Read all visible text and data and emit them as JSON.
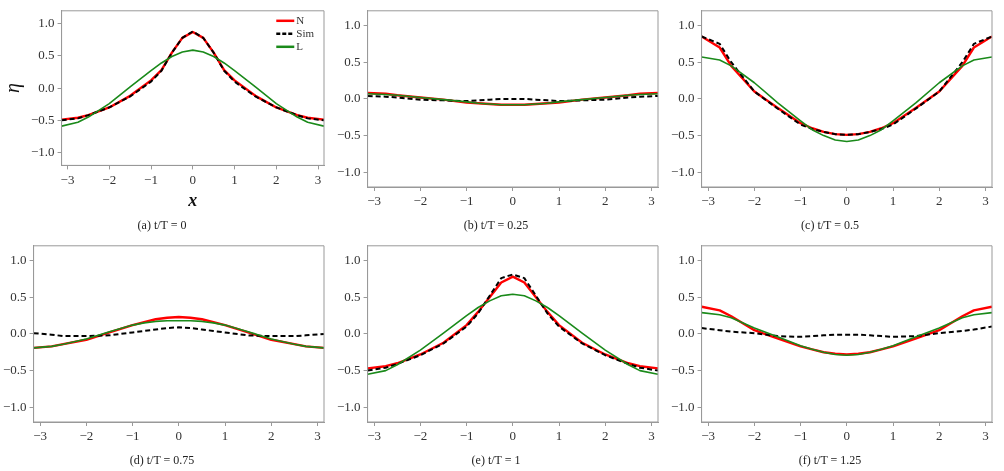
{
  "chart_data": [
    {
      "type": "line",
      "title": "(a) t/T = 0",
      "xlabel": "x",
      "ylabel": "η",
      "legend": "top right",
      "marker": "none",
      "grid": false,
      "xlim": [
        -3.1416,
        3.1416
      ],
      "xticks": [
        -3,
        -2,
        -1,
        0,
        1,
        2,
        3
      ],
      "ylim": [
        -1.2,
        1.2
      ],
      "yticks": [
        {
          "value": -1,
          "label": "−1.0"
        },
        {
          "value": -0.5,
          "label": "−0.5"
        },
        {
          "value": 0,
          "label": "0.0"
        },
        {
          "value": 0.5,
          "label": "0.5"
        },
        {
          "value": 1,
          "label": "1.0"
        }
      ],
      "x": [
        -3.14,
        -2.75,
        -2.5,
        -2,
        -1.5,
        -1,
        -0.75,
        -0.5,
        -0.25,
        0,
        0.25,
        0.5,
        0.75,
        1,
        1.5,
        2,
        2.5,
        2.75,
        3.14
      ],
      "series": [
        {
          "name": "N",
          "color": "#ff0000",
          "line_style": "solid",
          "values": [
            -0.49,
            -0.46,
            -0.42,
            -0.3,
            -0.12,
            0.12,
            0.28,
            0.55,
            0.78,
            0.87,
            0.78,
            0.55,
            0.28,
            0.12,
            -0.12,
            -0.3,
            -0.42,
            -0.46,
            -0.49
          ]
        },
        {
          "name": "Sim",
          "color": "#000000",
          "line_style": "dashed",
          "values": [
            -0.5,
            -0.47,
            -0.42,
            -0.3,
            -0.13,
            0.1,
            0.27,
            0.55,
            0.78,
            0.88,
            0.78,
            0.55,
            0.27,
            0.1,
            -0.13,
            -0.3,
            -0.42,
            -0.47,
            -0.5
          ]
        },
        {
          "name": "L",
          "color": "#1a8a1a",
          "line_style": "solid",
          "values": [
            -0.59,
            -0.53,
            -0.45,
            -0.24,
            0.02,
            0.27,
            0.39,
            0.49,
            0.56,
            0.59,
            0.56,
            0.49,
            0.39,
            0.27,
            0.02,
            -0.24,
            -0.45,
            -0.53,
            -0.59
          ]
        }
      ]
    },
    {
      "type": "line",
      "title": "(b) t/T = 0.25",
      "marker": "none",
      "grid": false,
      "xlim": [
        -3.1416,
        3.1416
      ],
      "xticks": [
        -3,
        -2,
        -1,
        0,
        1,
        2,
        3
      ],
      "ylim": [
        -1.2,
        1.2
      ],
      "yticks": [
        {
          "value": -1,
          "label": "−1.0"
        },
        {
          "value": -0.5,
          "label": "−0.5"
        },
        {
          "value": 0,
          "label": "0.0"
        },
        {
          "value": 0.5,
          "label": "0.5"
        },
        {
          "value": 1,
          "label": "1.0"
        }
      ],
      "x": [
        -3.14,
        -2.75,
        -2.5,
        -2,
        -1.5,
        -1,
        -0.75,
        -0.5,
        -0.25,
        0,
        0.25,
        0.5,
        0.75,
        1,
        1.5,
        2,
        2.5,
        2.75,
        3.14
      ],
      "series": [
        {
          "color": "#ff0000",
          "line_style": "solid",
          "values": [
            0.08,
            0.07,
            0.05,
            0.02,
            -0.01,
            -0.05,
            -0.06,
            -0.07,
            -0.08,
            -0.08,
            -0.08,
            -0.07,
            -0.06,
            -0.05,
            -0.01,
            0.02,
            0.05,
            0.07,
            0.08
          ]
        },
        {
          "color": "#000000",
          "line_style": "dashed",
          "values": [
            0.04,
            0.03,
            0.02,
            -0.01,
            -0.02,
            -0.03,
            -0.02,
            -0.01,
            0,
            0,
            0,
            -0.01,
            -0.02,
            -0.03,
            -0.02,
            -0.01,
            0.02,
            0.03,
            0.04
          ]
        },
        {
          "color": "#1a8a1a",
          "line_style": "solid",
          "values": [
            0.07,
            0.06,
            0.05,
            0.02,
            -0.01,
            -0.04,
            -0.06,
            -0.07,
            -0.08,
            -0.08,
            -0.08,
            -0.07,
            -0.06,
            -0.04,
            -0.01,
            0.02,
            0.05,
            0.06,
            0.07
          ]
        }
      ]
    },
    {
      "type": "line",
      "title": "(c) t/T = 0.5",
      "marker": "none",
      "grid": false,
      "xlim": [
        -3.1416,
        3.1416
      ],
      "xticks": [
        -3,
        -2,
        -1,
        0,
        1,
        2,
        3
      ],
      "ylim": [
        -1.2,
        1.2
      ],
      "yticks": [
        {
          "value": -1,
          "label": "−1.0"
        },
        {
          "value": -0.5,
          "label": "−0.5"
        },
        {
          "value": 0,
          "label": "0.0"
        },
        {
          "value": 0.5,
          "label": "0.5"
        },
        {
          "value": 1,
          "label": "1.0"
        }
      ],
      "x": [
        -3.14,
        -2.75,
        -2.5,
        -2,
        -1.5,
        -1,
        -0.75,
        -0.5,
        -0.25,
        0,
        0.25,
        0.5,
        0.75,
        1,
        1.5,
        2,
        2.5,
        2.75,
        3.14
      ],
      "series": [
        {
          "color": "#ff0000",
          "line_style": "solid",
          "values": [
            0.85,
            0.7,
            0.45,
            0.1,
            -0.12,
            -0.33,
            -0.4,
            -0.45,
            -0.48,
            -0.49,
            -0.48,
            -0.45,
            -0.4,
            -0.33,
            -0.12,
            0.1,
            0.45,
            0.7,
            0.85
          ]
        },
        {
          "color": "#000000",
          "line_style": "dashed",
          "values": [
            0.85,
            0.75,
            0.5,
            0.1,
            -0.13,
            -0.35,
            -0.41,
            -0.45,
            -0.48,
            -0.49,
            -0.48,
            -0.45,
            -0.41,
            -0.35,
            -0.13,
            0.1,
            0.5,
            0.75,
            0.85
          ]
        },
        {
          "color": "#1a8a1a",
          "line_style": "solid",
          "values": [
            0.57,
            0.53,
            0.45,
            0.22,
            -0.05,
            -0.3,
            -0.42,
            -0.5,
            -0.56,
            -0.58,
            -0.56,
            -0.5,
            -0.42,
            -0.3,
            -0.05,
            0.22,
            0.45,
            0.53,
            0.57
          ]
        }
      ]
    },
    {
      "type": "line",
      "title": "(d) t/T = 0.75",
      "marker": "none",
      "grid": false,
      "xlim": [
        -3.1416,
        3.1416
      ],
      "xticks": [
        -3,
        -2,
        -1,
        0,
        1,
        2,
        3
      ],
      "ylim": [
        -1.2,
        1.2
      ],
      "yticks": [
        {
          "value": -1,
          "label": "−1.0"
        },
        {
          "value": -0.5,
          "label": "−0.5"
        },
        {
          "value": 0,
          "label": "0.0"
        },
        {
          "value": 0.5,
          "label": "0.5"
        },
        {
          "value": 1,
          "label": "1.0"
        }
      ],
      "x": [
        -3.14,
        -2.75,
        -2.5,
        -2,
        -1.5,
        -1,
        -0.75,
        -0.5,
        -0.25,
        0,
        0.25,
        0.5,
        0.75,
        1,
        1.5,
        2,
        2.5,
        2.75,
        3.14
      ],
      "series": [
        {
          "color": "#ff0000",
          "line_style": "solid",
          "values": [
            -0.19,
            -0.17,
            -0.14,
            -0.08,
            0.02,
            0.12,
            0.16,
            0.2,
            0.22,
            0.23,
            0.22,
            0.2,
            0.16,
            0.12,
            0.02,
            -0.08,
            -0.14,
            -0.17,
            -0.19
          ]
        },
        {
          "color": "#000000",
          "line_style": "dashed",
          "values": [
            0.01,
            -0.01,
            -0.03,
            -0.03,
            -0.02,
            0.02,
            0.04,
            0.06,
            0.08,
            0.09,
            0.08,
            0.06,
            0.04,
            0.02,
            -0.02,
            -0.03,
            -0.03,
            -0.02,
            0
          ]
        },
        {
          "color": "#1a8a1a",
          "line_style": "solid",
          "values": [
            -0.19,
            -0.17,
            -0.14,
            -0.07,
            0.03,
            0.12,
            0.15,
            0.17,
            0.18,
            0.18,
            0.18,
            0.17,
            0.15,
            0.12,
            0.03,
            -0.07,
            -0.14,
            -0.17,
            -0.19
          ]
        }
      ]
    },
    {
      "type": "line",
      "title": "(e) t/T = 1",
      "marker": "none",
      "grid": false,
      "xlim": [
        -3.1416,
        3.1416
      ],
      "xticks": [
        -3,
        -2,
        -1,
        0,
        1,
        2,
        3
      ],
      "ylim": [
        -1.2,
        1.2
      ],
      "yticks": [
        {
          "value": -1,
          "label": "−1.0"
        },
        {
          "value": -0.5,
          "label": "−0.5"
        },
        {
          "value": 0,
          "label": "0.0"
        },
        {
          "value": 0.5,
          "label": "0.5"
        },
        {
          "value": 1,
          "label": "1.0"
        }
      ],
      "x": [
        -3.14,
        -2.75,
        -2.5,
        -2,
        -1.5,
        -1,
        -0.75,
        -0.5,
        -0.25,
        0,
        0.25,
        0.5,
        0.75,
        1,
        1.5,
        2,
        2.5,
        2.75,
        3.14
      ],
      "series": [
        {
          "color": "#ff0000",
          "line_style": "solid",
          "values": [
            -0.47,
            -0.44,
            -0.4,
            -0.28,
            -0.12,
            0.12,
            0.3,
            0.5,
            0.7,
            0.78,
            0.7,
            0.5,
            0.3,
            0.12,
            -0.12,
            -0.28,
            -0.4,
            -0.44,
            -0.47
          ]
        },
        {
          "color": "#000000",
          "line_style": "dashed",
          "values": [
            -0.5,
            -0.46,
            -0.41,
            -0.29,
            -0.13,
            0.1,
            0.28,
            0.52,
            0.76,
            0.81,
            0.76,
            0.52,
            0.28,
            0.1,
            -0.13,
            -0.29,
            -0.41,
            -0.46,
            -0.5
          ]
        },
        {
          "color": "#1a8a1a",
          "line_style": "solid",
          "values": [
            -0.55,
            -0.5,
            -0.42,
            -0.22,
            0.01,
            0.25,
            0.36,
            0.45,
            0.52,
            0.54,
            0.52,
            0.45,
            0.36,
            0.25,
            0.01,
            -0.22,
            -0.42,
            -0.5,
            -0.55
          ]
        }
      ]
    },
    {
      "type": "line",
      "title": "(f) t/T = 1.25",
      "marker": "none",
      "grid": false,
      "xlim": [
        -3.1416,
        3.1416
      ],
      "xticks": [
        -3,
        -2,
        -1,
        0,
        1,
        2,
        3
      ],
      "ylim": [
        -1.2,
        1.2
      ],
      "yticks": [
        {
          "value": -1,
          "label": "−1.0"
        },
        {
          "value": -0.5,
          "label": "−0.5"
        },
        {
          "value": 0,
          "label": "0.0"
        },
        {
          "value": 0.5,
          "label": "0.5"
        },
        {
          "value": 1,
          "label": "1.0"
        }
      ],
      "x": [
        -3.14,
        -2.75,
        -2.5,
        -2,
        -1.5,
        -1,
        -0.75,
        -0.5,
        -0.25,
        0,
        0.25,
        0.5,
        0.75,
        1,
        1.5,
        2,
        2.5,
        2.75,
        3.14
      ],
      "series": [
        {
          "color": "#ff0000",
          "line_style": "solid",
          "values": [
            0.37,
            0.32,
            0.24,
            0.05,
            -0.06,
            -0.17,
            -0.21,
            -0.25,
            -0.27,
            -0.28,
            -0.27,
            -0.25,
            -0.21,
            -0.17,
            -0.06,
            0.05,
            0.24,
            0.32,
            0.37
          ]
        },
        {
          "color": "#000000",
          "line_style": "dashed",
          "values": [
            0.08,
            0.05,
            0.03,
            0.01,
            -0.03,
            -0.04,
            -0.03,
            -0.02,
            -0.01,
            -0.01,
            -0.01,
            -0.02,
            -0.03,
            -0.04,
            -0.03,
            0.01,
            0.04,
            0.06,
            0.1
          ]
        },
        {
          "color": "#1a8a1a",
          "line_style": "solid",
          "values": [
            0.29,
            0.26,
            0.22,
            0.08,
            -0.04,
            -0.16,
            -0.21,
            -0.25,
            -0.28,
            -0.29,
            -0.28,
            -0.25,
            -0.21,
            -0.16,
            -0.04,
            0.08,
            0.22,
            0.26,
            0.29
          ]
        }
      ]
    }
  ]
}
